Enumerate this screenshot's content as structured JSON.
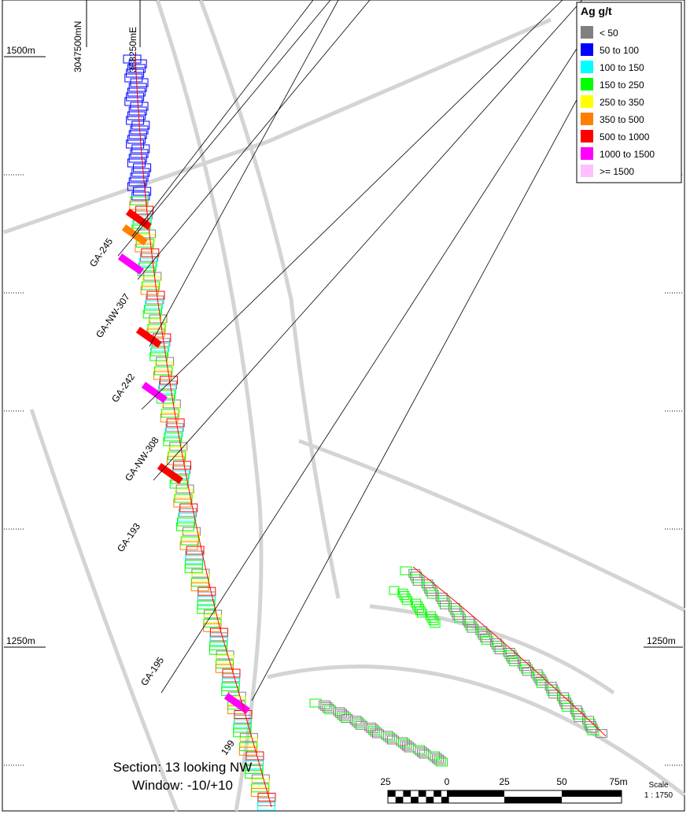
{
  "elevation_labels": [
    "1500m",
    "1250m",
    "1250m"
  ],
  "coordinate_labels": [
    "3047500mN",
    "368250mE"
  ],
  "legend": {
    "title": "Ag g/t",
    "items": [
      {
        "label": "< 50",
        "color": "#808080"
      },
      {
        "label": "50 to 100",
        "color": "#0000ff"
      },
      {
        "label": "100 to 150",
        "color": "#00ffff"
      },
      {
        "label": "150 to 250",
        "color": "#00ff00"
      },
      {
        "label": "250 to 350",
        "color": "#ffff00"
      },
      {
        "label": "350 to 500",
        "color": "#ff8000"
      },
      {
        "label": "500 to 1000",
        "color": "#ff0000"
      },
      {
        "label": "1000 to 1500",
        "color": "#ff00ff"
      },
      {
        "label": ">= 1500",
        "color": "#ffc0ff"
      }
    ]
  },
  "drill_holes": [
    "GA-245",
    "GA-NW-307",
    "GA-242",
    "GA-NW-308",
    "GA-193",
    "GA-195",
    "199"
  ],
  "section": {
    "title": "Section: 13 looking NW",
    "window": "Window: -10/+10"
  },
  "scale_bar": {
    "labels": [
      "25",
      "0",
      "25",
      "50",
      "75m"
    ],
    "title": "Scale",
    "ratio": "1 : 1750"
  }
}
